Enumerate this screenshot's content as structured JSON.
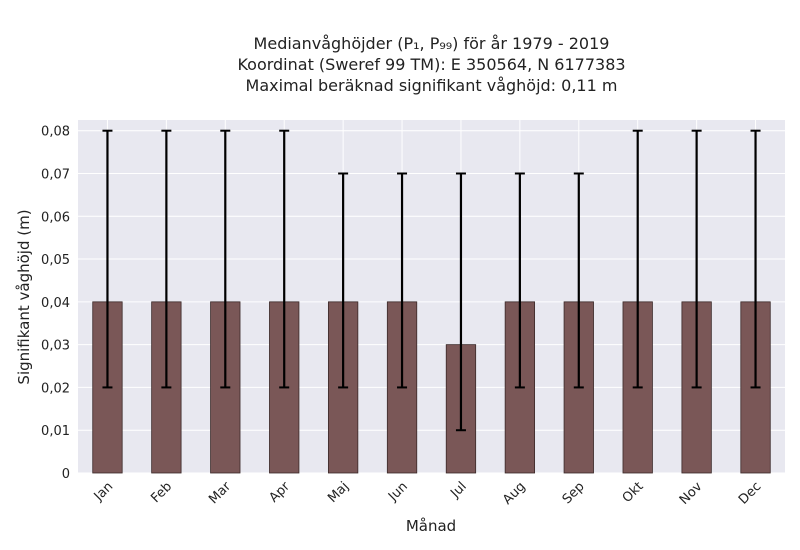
{
  "chart_data": {
    "type": "bar",
    "title_lines": [
      "Medianvåghöjder (P₁, P₉₉) för år 1979 - 2019",
      "Koordinat (Sweref 99 TM): E 350564, N 6177383",
      "Maximal beräknad signifikant våghöjd: 0,11 m"
    ],
    "xlabel": "Månad",
    "ylabel": "Signifikant våghöjd (m)",
    "categories": [
      "Jan",
      "Feb",
      "Mar",
      "Apr",
      "Maj",
      "Jun",
      "Jul",
      "Aug",
      "Sep",
      "Okt",
      "Nov",
      "Dec"
    ],
    "values": [
      0.04,
      0.04,
      0.04,
      0.04,
      0.04,
      0.04,
      0.03,
      0.04,
      0.04,
      0.04,
      0.04,
      0.04
    ],
    "error_low": [
      0.02,
      0.02,
      0.02,
      0.02,
      0.02,
      0.02,
      0.01,
      0.02,
      0.02,
      0.02,
      0.02,
      0.02
    ],
    "error_high": [
      0.08,
      0.08,
      0.08,
      0.08,
      0.07,
      0.07,
      0.07,
      0.07,
      0.07,
      0.08,
      0.08,
      0.08
    ],
    "ylim": [
      0,
      0.0825
    ],
    "yticks": [
      0,
      0.01,
      0.02,
      0.03,
      0.04,
      0.05,
      0.06,
      0.07,
      0.08
    ],
    "ytick_labels": [
      "0",
      "0,01",
      "0,02",
      "0,03",
      "0,04",
      "0,05",
      "0,06",
      "0,07",
      "0,08"
    ],
    "grid": true,
    "colors": {
      "bar": "#7a5757",
      "bar_edge": "#3a2828",
      "error": "#000000",
      "background": "#e8e8f0",
      "grid": "#ffffff"
    }
  }
}
